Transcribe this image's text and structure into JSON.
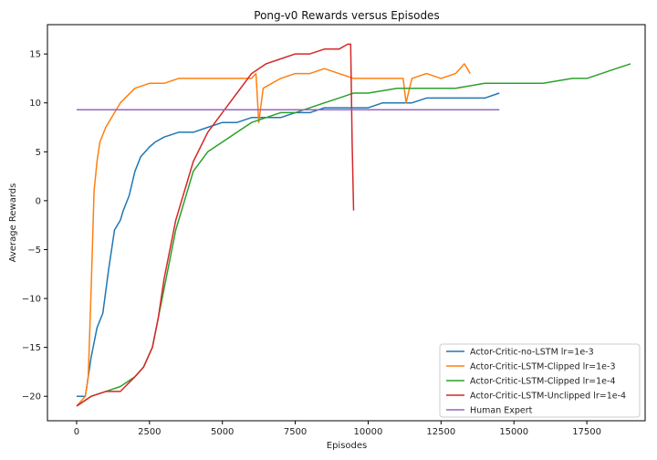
{
  "chart_data": {
    "type": "line",
    "title": "Pong-v0 Rewards versus Episodes",
    "xlabel": "Episodes",
    "ylabel": "Average Rewards",
    "xlim": [
      -1000,
      19500
    ],
    "ylim": [
      -22.5,
      18
    ],
    "xticks": [
      0,
      2500,
      5000,
      7500,
      10000,
      12500,
      15000,
      17500
    ],
    "yticks": [
      -20,
      -15,
      -10,
      -5,
      0,
      5,
      10,
      15
    ],
    "grid": false,
    "legend_position": "lower-right",
    "series": [
      {
        "name": "Actor-Critic-no-LSTM lr=1e-3",
        "color": "#1f77b4",
        "x": [
          0,
          300,
          500,
          700,
          900,
          1100,
          1300,
          1500,
          1600,
          1800,
          2000,
          2200,
          2500,
          2700,
          3000,
          3500,
          4000,
          4500,
          5000,
          5500,
          6000,
          6500,
          7000,
          7500,
          8000,
          8500,
          9000,
          9500,
          10000,
          10500,
          11000,
          11500,
          12000,
          12500,
          13000,
          13500,
          14000,
          14500
        ],
        "y": [
          -20,
          -20,
          -16,
          -13,
          -11.5,
          -7,
          -3,
          -2,
          -1,
          0.5,
          3,
          4.5,
          5.5,
          6,
          6.5,
          7,
          7,
          7.5,
          8,
          8,
          8.5,
          8.5,
          8.5,
          9,
          9,
          9.5,
          9.5,
          9.5,
          9.5,
          10,
          10,
          10,
          10.5,
          10.5,
          10.5,
          10.5,
          10.5,
          11
        ]
      },
      {
        "name": "Actor-Critic-LSTM-Clipped lr=1e-3",
        "color": "#ff7f0e",
        "x": [
          0,
          300,
          400,
          500,
          600,
          700,
          800,
          1000,
          1200,
          1500,
          2000,
          2500,
          3000,
          3500,
          4000,
          4500,
          5000,
          5500,
          6000,
          6150,
          6250,
          6400,
          7000,
          7500,
          8000,
          8500,
          9000,
          9500,
          10000,
          10500,
          11000,
          11200,
          11300,
          11500,
          12000,
          12500,
          13000,
          13300,
          13500
        ],
        "y": [
          -21,
          -20,
          -18,
          -9,
          1,
          4,
          6,
          7.5,
          8.5,
          10,
          11.5,
          12,
          12,
          12.5,
          12.5,
          12.5,
          12.5,
          12.5,
          12.5,
          13,
          8,
          11.5,
          12.5,
          13,
          13,
          13.5,
          13,
          12.5,
          12.5,
          12.5,
          12.5,
          12.5,
          10,
          12.5,
          13,
          12.5,
          13,
          14,
          13
        ]
      },
      {
        "name": "Actor-Critic-LSTM-Clipped lr=1e-4",
        "color": "#2ca02c",
        "x": [
          0,
          500,
          1000,
          1500,
          2000,
          2300,
          2600,
          2800,
          3000,
          3200,
          3400,
          3600,
          3800,
          4000,
          4500,
          5000,
          5500,
          6000,
          6500,
          7000,
          7500,
          8000,
          8500,
          9000,
          9500,
          10000,
          11000,
          12000,
          13000,
          14000,
          15000,
          16000,
          17000,
          17500,
          18000,
          18500,
          19000
        ],
        "y": [
          -21,
          -20,
          -19.5,
          -19,
          -18,
          -17,
          -15,
          -12,
          -9,
          -6,
          -3,
          -1,
          1,
          3,
          5,
          6,
          7,
          8,
          8.5,
          9,
          9,
          9.5,
          10,
          10.5,
          11,
          11,
          11.5,
          11.5,
          11.5,
          12,
          12,
          12,
          12.5,
          12.5,
          13,
          13.5,
          14
        ]
      },
      {
        "name": "Actor-Critic-LSTM-Unclipped lr=1e-4",
        "color": "#d62728",
        "x": [
          0,
          500,
          1000,
          1500,
          2000,
          2300,
          2600,
          2800,
          3000,
          3200,
          3400,
          3600,
          3800,
          4000,
          4500,
          5000,
          5500,
          6000,
          6500,
          7000,
          7500,
          8000,
          8500,
          9000,
          9300,
          9400,
          9450,
          9500
        ],
        "y": [
          -21,
          -20,
          -19.5,
          -19.5,
          -18,
          -17,
          -15,
          -12,
          -8,
          -5,
          -2,
          0,
          2,
          4,
          7,
          9,
          11,
          13,
          14,
          14.5,
          15,
          15,
          15.5,
          15.5,
          16,
          16,
          6,
          -1
        ]
      },
      {
        "name": "Human Expert",
        "color": "#9467bd",
        "x": [
          0,
          14500
        ],
        "y": [
          9.3,
          9.3
        ]
      }
    ]
  }
}
